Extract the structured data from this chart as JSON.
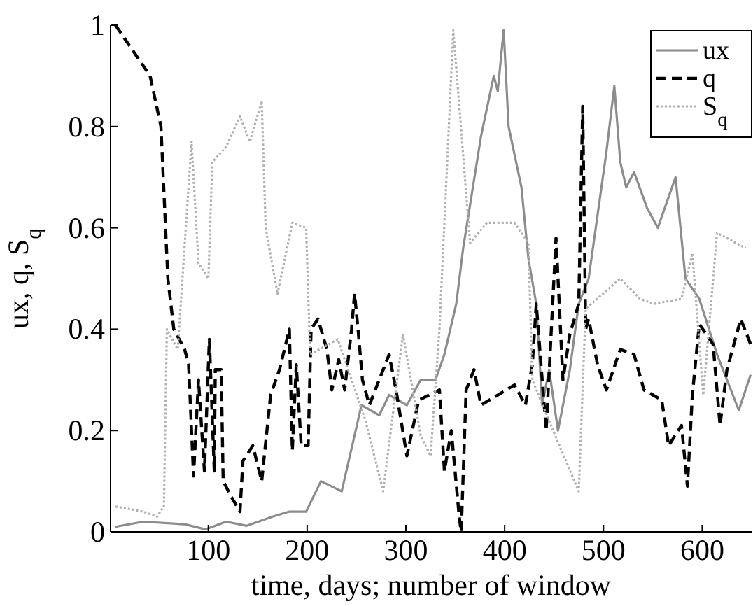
{
  "chart_data": {
    "type": "line",
    "xlabel": "time, days; number of window",
    "ylabel": "ux, q, S$_{q}$",
    "xlim": [
      1,
      650
    ],
    "ylim": [
      0,
      1
    ],
    "xticks": [
      100,
      200,
      300,
      400,
      500,
      600
    ],
    "yticks": [
      0,
      0.2,
      0.4,
      0.6,
      0.8,
      1
    ],
    "legend": "top right",
    "grid": false,
    "series": [
      {
        "name": "ux",
        "color": "#8c8c8c",
        "line_style": "solid",
        "x": [
          6,
          34,
          76,
          97,
          118,
          139,
          165,
          182,
          199,
          214,
          235,
          255,
          273,
          283,
          301,
          315,
          330,
          339,
          351,
          358,
          376,
          389,
          393,
          399,
          404,
          417,
          424,
          432,
          438,
          445,
          454,
          466,
          475,
          485,
          503,
          511,
          517,
          523,
          531,
          544,
          555,
          573,
          583,
          597,
          615,
          637,
          649
        ],
        "values": [
          0.01,
          0.02,
          0.015,
          0.005,
          0.02,
          0.012,
          0.03,
          0.04,
          0.04,
          0.1,
          0.08,
          0.25,
          0.23,
          0.27,
          0.25,
          0.3,
          0.3,
          0.35,
          0.45,
          0.56,
          0.78,
          0.9,
          0.87,
          0.99,
          0.8,
          0.68,
          0.54,
          0.45,
          0.25,
          0.32,
          0.2,
          0.32,
          0.45,
          0.5,
          0.75,
          0.88,
          0.73,
          0.68,
          0.71,
          0.64,
          0.6,
          0.7,
          0.5,
          0.46,
          0.35,
          0.24,
          0.31
        ]
      },
      {
        "name": "q",
        "color": "#000000",
        "line_style": "dashed",
        "x": [
          6,
          41,
          52,
          59,
          65,
          76,
          80,
          85,
          90,
          96,
          101,
          106,
          107,
          113,
          115,
          123,
          132,
          135,
          145,
          154,
          163,
          172,
          182,
          185,
          189,
          194,
          201,
          204,
          211,
          220,
          225,
          232,
          238,
          245,
          248,
          252,
          256,
          263,
          273,
          283,
          290,
          301,
          313,
          334,
          339,
          346,
          354,
          356,
          361,
          369,
          376,
          410,
          421,
          428,
          432,
          442,
          452,
          459,
          466,
          475,
          479,
          482,
          485,
          494,
          503,
          517,
          531,
          541,
          559,
          566,
          579,
          585,
          590,
          597,
          611,
          618,
          625,
          639,
          649
        ],
        "values": [
          1,
          0.9,
          0.8,
          0.5,
          0.4,
          0.36,
          0.33,
          0.11,
          0.3,
          0.12,
          0.38,
          0.12,
          0.32,
          0.32,
          0.1,
          0.07,
          0.04,
          0.14,
          0.17,
          0.1,
          0.27,
          0.32,
          0.4,
          0.16,
          0.33,
          0.17,
          0.17,
          0.4,
          0.42,
          0.36,
          0.28,
          0.34,
          0.28,
          0.4,
          0.47,
          0.39,
          0.3,
          0.25,
          0.3,
          0.35,
          0.28,
          0.15,
          0.26,
          0.28,
          0.12,
          0.2,
          0.03,
          0,
          0.28,
          0.32,
          0.25,
          0.29,
          0.25,
          0.33,
          0.45,
          0.2,
          0.58,
          0.3,
          0.39,
          0.45,
          0.84,
          0.4,
          0.42,
          0.33,
          0.28,
          0.36,
          0.35,
          0.28,
          0.26,
          0.17,
          0.21,
          0.09,
          0.27,
          0.41,
          0.37,
          0.21,
          0.32,
          0.42,
          0.37
        ]
      },
      {
        "name": "S$_{q}$",
        "color": "#b0b0b0",
        "line_style": "dotted",
        "x": [
          6,
          34,
          48,
          55,
          58,
          69,
          83,
          90,
          100,
          104,
          118,
          132,
          142,
          154,
          158,
          170,
          185,
          199,
          203,
          231,
          259,
          277,
          297,
          315,
          325,
          334,
          348,
          365,
          382,
          410,
          424,
          428,
          449,
          475,
          482,
          517,
          537,
          551,
          579,
          590,
          601,
          615,
          644
        ],
        "values": [
          0.05,
          0.04,
          0.03,
          0.05,
          0.4,
          0.36,
          0.77,
          0.53,
          0.5,
          0.73,
          0.76,
          0.82,
          0.77,
          0.85,
          0.6,
          0.47,
          0.61,
          0.6,
          0.35,
          0.38,
          0.22,
          0.08,
          0.39,
          0.19,
          0.15,
          0.4,
          0.99,
          0.57,
          0.61,
          0.61,
          0.57,
          0.3,
          0.2,
          0.08,
          0.44,
          0.5,
          0.46,
          0.45,
          0.46,
          0.55,
          0.27,
          0.59,
          0.56
        ]
      }
    ]
  }
}
